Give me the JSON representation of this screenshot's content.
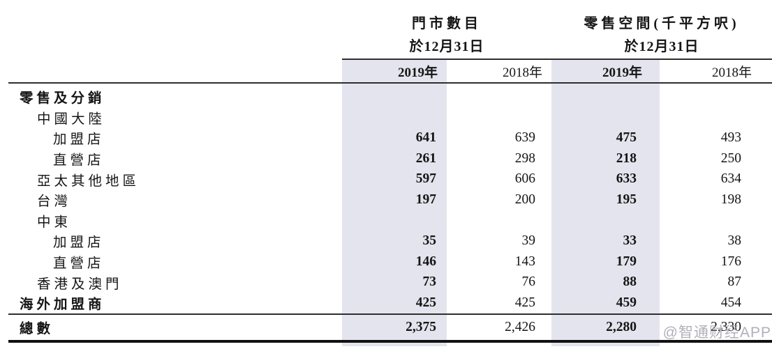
{
  "colors": {
    "highlight": "#e4e4ee",
    "rule": "#2e2e2e",
    "rule_heavy": "#101010",
    "watermark": "rgba(158,156,170,0.8)"
  },
  "header": {
    "groups": [
      {
        "line1": "門市數目",
        "line2": "於12月31日"
      },
      {
        "line1": "零售空間(千平方呎)",
        "line2": "於12月31日"
      }
    ],
    "years": [
      "2019年",
      "2018年",
      "2019年",
      "2018年"
    ]
  },
  "rows": [
    {
      "label": "零售及分銷",
      "values": [
        "",
        "",
        "",
        ""
      ]
    },
    {
      "label": "中國大陸",
      "values": [
        "",
        "",
        "",
        ""
      ]
    },
    {
      "label": "加盟店",
      "values": [
        "641",
        "639",
        "475",
        "493"
      ]
    },
    {
      "label": "直營店",
      "values": [
        "261",
        "298",
        "218",
        "250"
      ]
    },
    {
      "label": "亞太其他地區",
      "values": [
        "597",
        "606",
        "633",
        "634"
      ]
    },
    {
      "label": "台灣",
      "values": [
        "197",
        "200",
        "195",
        "198"
      ]
    },
    {
      "label": "中東",
      "values": [
        "",
        "",
        "",
        ""
      ]
    },
    {
      "label": "加盟店",
      "values": [
        "35",
        "39",
        "33",
        "38"
      ]
    },
    {
      "label": "直營店",
      "values": [
        "146",
        "143",
        "179",
        "176"
      ]
    },
    {
      "label": "香港及澳門",
      "values": [
        "73",
        "76",
        "88",
        "87"
      ]
    },
    {
      "label": "海外加盟商",
      "values": [
        "425",
        "425",
        "459",
        "454"
      ]
    }
  ],
  "total": {
    "label": "總數",
    "values": [
      "2,375",
      "2,426",
      "2,280",
      "2,330"
    ]
  },
  "watermark": "@智通财经APP"
}
